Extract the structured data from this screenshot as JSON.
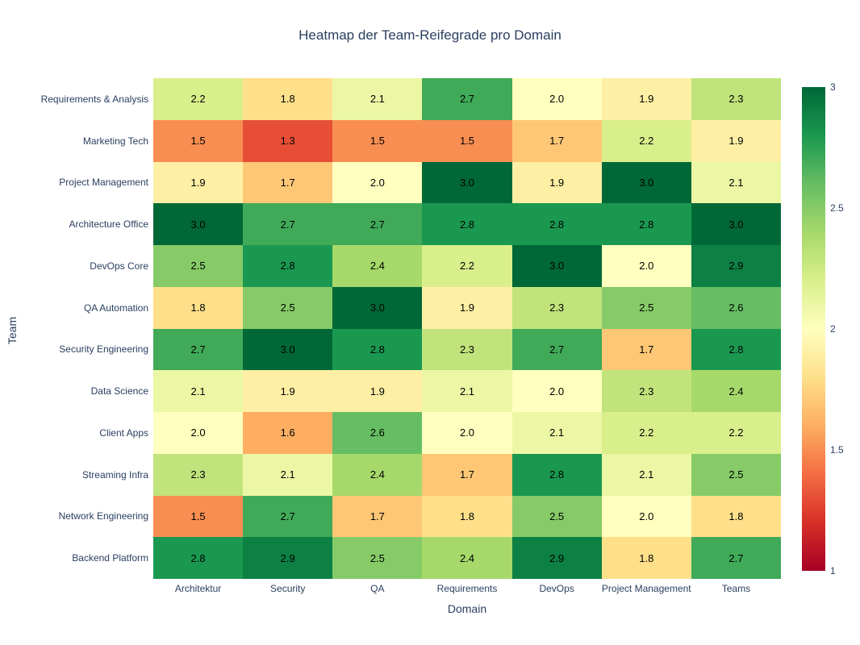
{
  "chart_data": {
    "type": "heatmap",
    "title": "Heatmap der Team-Reifegrade pro Domain",
    "xlabel": "Domain",
    "ylabel": "Team",
    "x_categories": [
      "Architektur",
      "Security",
      "QA",
      "Requirements",
      "DevOps",
      "Project Management",
      "Teams"
    ],
    "y_categories": [
      "Requirements & Analysis",
      "Marketing Tech",
      "Project Management",
      "Architecture Office",
      "DevOps Core",
      "QA Automation",
      "Security Engineering",
      "Data Science",
      "Client Apps",
      "Streaming Infra",
      "Network Engineering",
      "Backend Platform"
    ],
    "values": [
      [
        2.2,
        1.8,
        2.1,
        2.7,
        2.0,
        1.9,
        2.3
      ],
      [
        1.5,
        1.3,
        1.5,
        1.5,
        1.7,
        2.2,
        1.9
      ],
      [
        1.9,
        1.7,
        2.0,
        3.0,
        1.9,
        3.0,
        2.1
      ],
      [
        3.0,
        2.7,
        2.7,
        2.8,
        2.8,
        2.8,
        3.0
      ],
      [
        2.5,
        2.8,
        2.4,
        2.2,
        3.0,
        2.0,
        2.9
      ],
      [
        1.8,
        2.5,
        3.0,
        1.9,
        2.3,
        2.5,
        2.6
      ],
      [
        2.7,
        3.0,
        2.8,
        2.3,
        2.7,
        1.7,
        2.8
      ],
      [
        2.1,
        1.9,
        1.9,
        2.1,
        2.0,
        2.3,
        2.4
      ],
      [
        2.0,
        1.6,
        2.6,
        2.0,
        2.1,
        2.2,
        2.2
      ],
      [
        2.3,
        2.1,
        2.4,
        1.7,
        2.8,
        2.1,
        2.5
      ],
      [
        1.5,
        2.7,
        1.7,
        1.8,
        2.5,
        2.0,
        1.8
      ],
      [
        2.8,
        2.9,
        2.5,
        2.4,
        2.9,
        1.8,
        2.7
      ]
    ],
    "zmin": 1,
    "zmax": 3,
    "grid": false,
    "legend_position": "right-colorbar",
    "colorbar_ticks": [
      3,
      2.5,
      2,
      1.5,
      1
    ],
    "colorscale_name": "RdYlGn",
    "colorscale_stops": [
      [
        0.0,
        "#a50026"
      ],
      [
        0.1,
        "#d73027"
      ],
      [
        0.2,
        "#f46d43"
      ],
      [
        0.3,
        "#fdae61"
      ],
      [
        0.4,
        "#fee08b"
      ],
      [
        0.5,
        "#ffffbf"
      ],
      [
        0.6,
        "#d9ef8b"
      ],
      [
        0.7,
        "#a6d96a"
      ],
      [
        0.8,
        "#66bd63"
      ],
      [
        0.9,
        "#1a9850"
      ],
      [
        1.0,
        "#006837"
      ]
    ]
  },
  "colors": {
    "background": "#ffffff",
    "title_text": "#2a3f5f",
    "axis_text": "#2a3f5f",
    "cell_text": "#000000"
  }
}
